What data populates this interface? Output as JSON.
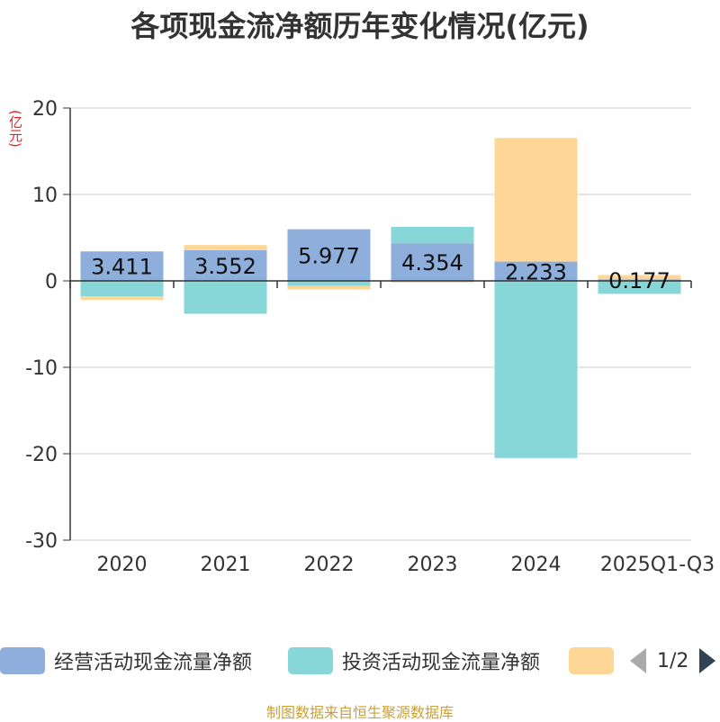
{
  "chart_data": {
    "type": "bar",
    "title": "各项现金流净额历年变化情况(亿元)",
    "ylabel": "(亿元)",
    "xlabel": "",
    "ylim": [
      -30,
      20
    ],
    "yticks": [
      20,
      10,
      0,
      -10,
      -20,
      -30
    ],
    "categories": [
      "2020",
      "2021",
      "2022",
      "2023",
      "2024",
      "2025Q1-Q3"
    ],
    "series": [
      {
        "name": "经营活动现金流量净额",
        "color": "#8eaedb",
        "values": [
          3.411,
          3.552,
          5.977,
          4.354,
          2.233,
          0.177
        ],
        "labels": [
          "3.411",
          "3.552",
          "5.977",
          "4.354",
          "2.233",
          "0.177"
        ]
      },
      {
        "name": "投资活动现金流量净额",
        "color": "#87d6d8",
        "values": [
          -1.8,
          -3.8,
          -0.6,
          1.9,
          -20.5,
          -1.5
        ]
      },
      {
        "name": "",
        "color": "#fed796",
        "values": [
          -0.4,
          0.6,
          -0.4,
          -0.2,
          14.3,
          0.5
        ]
      }
    ]
  },
  "legend": {
    "items": [
      {
        "label": "经营活动现金流量净额",
        "color": "#8eaedb"
      },
      {
        "label": "投资活动现金流量净额",
        "color": "#87d6d8"
      },
      {
        "label": "",
        "color": "#fed796"
      }
    ],
    "page": "1/2"
  },
  "source": "制图数据来自恒生聚源数据库"
}
